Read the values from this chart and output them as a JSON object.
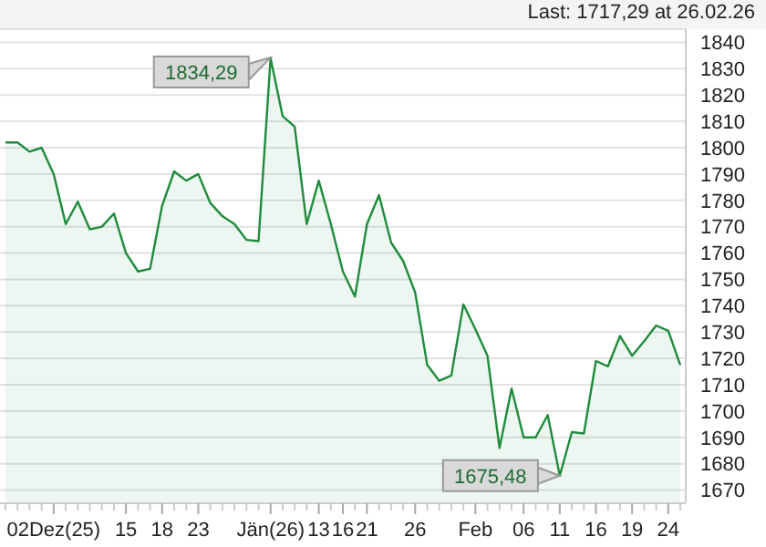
{
  "chart_data": {
    "type": "area",
    "title": "Last: 1717,29 at 26.02.26",
    "categories": [
      null,
      null,
      null,
      null,
      "02Dez(25)",
      null,
      null,
      null,
      null,
      null,
      "15",
      null,
      null,
      "18",
      null,
      null,
      "23",
      null,
      null,
      null,
      null,
      null,
      "Jän(26)",
      null,
      null,
      null,
      "13",
      null,
      "16",
      null,
      "21",
      null,
      null,
      null,
      "26",
      null,
      null,
      null,
      null,
      "Feb",
      null,
      null,
      null,
      "06",
      null,
      null,
      "11",
      null,
      null,
      "16",
      null,
      null,
      "19",
      null,
      null,
      "24",
      null
    ],
    "series": [
      {
        "color": "#1e8c3c",
        "values": [
          1802,
          1802,
          1798.5,
          1800,
          1790,
          1771,
          1779.5,
          1769,
          1770,
          1775,
          1760,
          1753,
          1754,
          1778,
          1791,
          1787.5,
          1790,
          1779,
          1774,
          1771,
          1765,
          1764.5,
          1834,
          1812,
          1808,
          1771,
          1787.5,
          1771,
          1753,
          1743.5,
          1771,
          1782,
          1764,
          1757,
          1745,
          1717.5,
          1711.5,
          1713.5,
          1740.5,
          1731,
          1721,
          1686,
          1708.5,
          1690,
          1690,
          1698.5,
          1675.5,
          1692,
          1691.5,
          1719,
          1717,
          1728.5,
          1721,
          1726.5,
          1732.5,
          1730.5,
          1717.5
        ]
      }
    ],
    "ylim": [
      1665,
      1845
    ],
    "yticks": [
      1670,
      1680,
      1690,
      1700,
      1710,
      1720,
      1730,
      1740,
      1750,
      1760,
      1770,
      1780,
      1790,
      1800,
      1810,
      1820,
      1830,
      1840
    ],
    "grid": "y",
    "annotations": [
      {
        "text": "1834,29",
        "x": "Jän(26)",
        "y": 1834.29
      },
      {
        "text": "1675,48",
        "x": "11",
        "y": 1675.48
      }
    ]
  }
}
